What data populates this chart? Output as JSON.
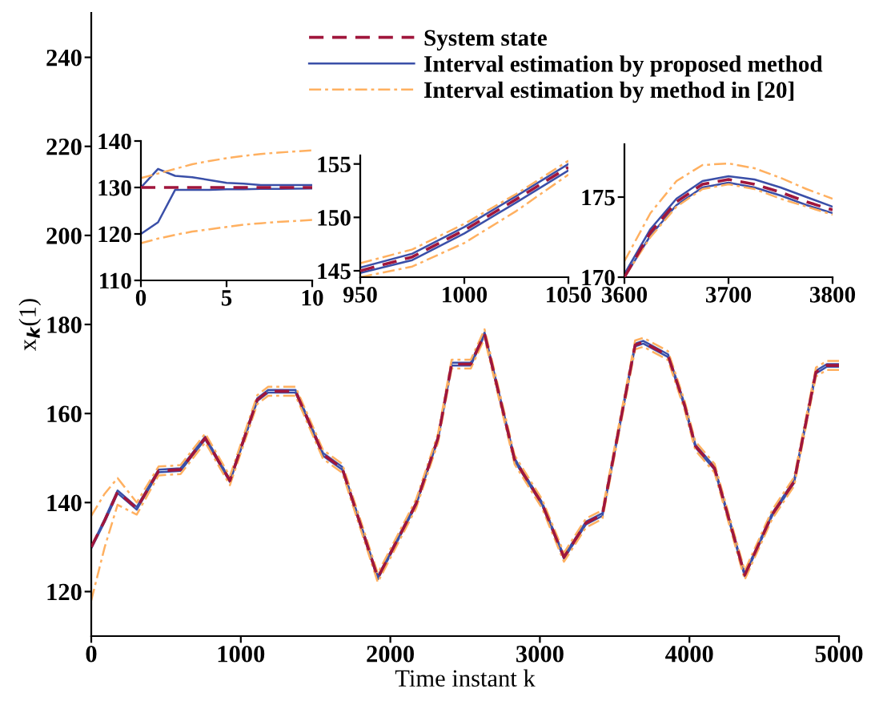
{
  "chart_data": [
    {
      "type": "line",
      "xlabel": "Time instant k",
      "ylabel": "x$_{k}$(1)",
      "xlim": [
        0,
        5000
      ],
      "ylim": [
        110,
        250
      ],
      "xticks": [
        0,
        1000,
        2000,
        3000,
        4000,
        5000
      ],
      "yticks": [
        120,
        140,
        160,
        180,
        200,
        220,
        240
      ],
      "legend": "top right",
      "grid": false,
      "x": [
        0,
        90,
        176,
        304,
        450,
        597,
        762,
        927,
        1110,
        1183,
        1366,
        1550,
        1678,
        1916,
        2172,
        2319,
        2410,
        2538,
        2630,
        2831,
        3015,
        3161,
        3308,
        3418,
        3637,
        3692,
        3857,
        3967,
        4040,
        4168,
        4370,
        4553,
        4700,
        4846,
        4919,
        5000
      ],
      "series": [
        {
          "name": "System state",
          "color": "#a0163c",
          "line_style": "dashed",
          "values": [
            130,
            136,
            142.4,
            138.7,
            147.1,
            147.4,
            154.5,
            144.9,
            163.1,
            165,
            165,
            150.8,
            147.7,
            123.1,
            139.7,
            154.5,
            171.1,
            171.1,
            177.9,
            149.6,
            139.7,
            127.7,
            135.4,
            137.3,
            175.4,
            176,
            173,
            161.9,
            152.7,
            147.7,
            123.7,
            137.3,
            144.7,
            169.3,
            170.8,
            170.8
          ]
        },
        {
          "name": "Interval estimation by proposed method",
          "color": "#3a4fa8",
          "line_style": "solid",
          "values": [
            130,
            136.3,
            142.7,
            139,
            147.4,
            147.7,
            154.8,
            145.2,
            163.4,
            165.3,
            165.3,
            151.1,
            148,
            123.4,
            140,
            154.8,
            171.4,
            171.4,
            178.2,
            149.9,
            140,
            128,
            135.7,
            137.6,
            175.7,
            176.3,
            173.3,
            162.2,
            153,
            148,
            124,
            137.6,
            145,
            169.6,
            171.1,
            171.1
          ]
        },
        {
          "color": "#3a4fa8",
          "line_style": "solid",
          "values": [
            129.7,
            135.7,
            142.1,
            138.4,
            146.8,
            147.1,
            154.2,
            144.6,
            162.8,
            164.7,
            164.7,
            150.5,
            147.4,
            122.8,
            139.4,
            154.2,
            170.8,
            170.8,
            177.6,
            149.3,
            139.4,
            127.4,
            135.1,
            137,
            175.1,
            175.7,
            172.7,
            161.6,
            152.4,
            147.4,
            123.4,
            137,
            144.4,
            169,
            170.5,
            170.5
          ]
        },
        {
          "name": "Interval estimation by method in [20]",
          "color": "#ffb060",
          "line_style": "dashdot",
          "values": [
            137,
            142,
            145.5,
            140,
            148.1,
            148.4,
            155.5,
            145.9,
            164.1,
            166,
            166,
            151.8,
            148.7,
            124.1,
            140.7,
            155.5,
            172.1,
            172.1,
            178.9,
            150.6,
            140.7,
            128.7,
            136.4,
            138.3,
            176.4,
            177,
            174,
            162.9,
            153.7,
            148.7,
            124.7,
            138.3,
            145.7,
            170.3,
            171.8,
            171.8
          ]
        },
        {
          "color": "#ffb060",
          "line_style": "dashdot",
          "values": [
            118,
            130,
            139.5,
            137.3,
            146.1,
            146.4,
            153.5,
            143.9,
            162.1,
            164,
            164,
            149.8,
            146.7,
            122.1,
            138.7,
            153.5,
            170.1,
            170.1,
            176.9,
            148.6,
            138.7,
            126.7,
            134.4,
            136.3,
            174.4,
            175,
            172,
            160.9,
            151.7,
            146.7,
            122.7,
            136.3,
            143.7,
            168.3,
            169.8,
            169.8
          ]
        }
      ]
    },
    {
      "type": "line",
      "xlim": [
        0,
        10
      ],
      "ylim": [
        110,
        140
      ],
      "xticks": [
        0,
        5,
        10
      ],
      "yticks": [
        110,
        120,
        130,
        140
      ],
      "grid": false,
      "x": [
        0,
        1,
        2,
        3,
        4,
        5,
        6,
        7,
        8,
        10
      ],
      "series": [
        {
          "color": "#a0163c",
          "line_style": "dashed",
          "values": [
            130,
            130,
            130,
            130,
            130,
            130,
            130,
            130,
            130,
            130
          ]
        },
        {
          "color": "#3a4fa8",
          "line_style": "solid",
          "values": [
            130,
            134,
            132.5,
            132.2,
            131.6,
            131,
            130.8,
            130.5,
            130.5,
            130.5
          ]
        },
        {
          "color": "#3a4fa8",
          "line_style": "solid",
          "values": [
            120,
            122.5,
            129.5,
            129.5,
            129.5,
            129.6,
            129.6,
            129.7,
            129.7,
            129.8
          ]
        },
        {
          "color": "#ffb060",
          "line_style": "dashdot",
          "values": [
            132,
            133,
            134,
            135,
            135.7,
            136.3,
            136.8,
            137.2,
            137.5,
            138
          ]
        },
        {
          "color": "#ffb060",
          "line_style": "dashdot",
          "values": [
            118,
            119,
            119.8,
            120.5,
            121,
            121.5,
            122,
            122.3,
            122.6,
            123
          ]
        }
      ]
    },
    {
      "type": "line",
      "xlim": [
        950,
        1050
      ],
      "ylim": [
        144.4,
        155.8
      ],
      "xticks": [
        950,
        1000,
        1050
      ],
      "yticks": [
        145,
        150,
        155
      ],
      "grid": false,
      "x": [
        950,
        975,
        1000,
        1025,
        1050
      ],
      "series": [
        {
          "color": "#a0163c",
          "line_style": "dashed",
          "values": [
            145,
            146.3,
            148.8,
            151.7,
            154.7
          ]
        },
        {
          "color": "#3a4fa8",
          "line_style": "solid",
          "values": [
            145.3,
            146.6,
            149.1,
            152,
            155
          ]
        },
        {
          "color": "#3a4fa8",
          "line_style": "solid",
          "values": [
            144.8,
            146,
            148.5,
            151.4,
            154.4
          ]
        },
        {
          "color": "#ffb060",
          "line_style": "dashdot",
          "values": [
            145.7,
            147,
            149.4,
            152.2,
            155.3
          ]
        },
        {
          "color": "#ffb060",
          "line_style": "dashdot",
          "values": [
            144.4,
            145.4,
            147.6,
            150.6,
            154
          ]
        }
      ]
    },
    {
      "type": "line",
      "xlim": [
        3600,
        3800
      ],
      "ylim": [
        170,
        178.3
      ],
      "xticks": [
        3600,
        3700,
        3800
      ],
      "yticks": [
        170,
        175
      ],
      "grid": false,
      "x": [
        3600,
        3625,
        3650,
        3675,
        3700,
        3725,
        3750,
        3775,
        3800
      ],
      "series": [
        {
          "color": "#a0163c",
          "line_style": "dashed",
          "values": [
            170,
            172.8,
            174.7,
            175.8,
            176.1,
            175.8,
            175.3,
            174.7,
            174.2
          ]
        },
        {
          "color": "#3a4fa8",
          "line_style": "solid",
          "values": [
            170.2,
            173,
            174.9,
            176,
            176.3,
            176.1,
            175.6,
            175,
            174.4
          ]
        },
        {
          "color": "#3a4fa8",
          "line_style": "solid",
          "values": [
            170,
            172.6,
            174.5,
            175.6,
            175.9,
            175.6,
            175.1,
            174.5,
            174
          ]
        },
        {
          "color": "#ffb060",
          "line_style": "dashdot",
          "values": [
            171,
            174,
            176,
            177,
            177.1,
            176.8,
            176.2,
            175.5,
            174.9
          ]
        },
        {
          "color": "#ffb060",
          "line_style": "dashdot",
          "values": [
            170,
            172.5,
            174.4,
            175.5,
            175.8,
            175.5,
            174.9,
            174.4,
            173.9
          ]
        }
      ]
    }
  ]
}
